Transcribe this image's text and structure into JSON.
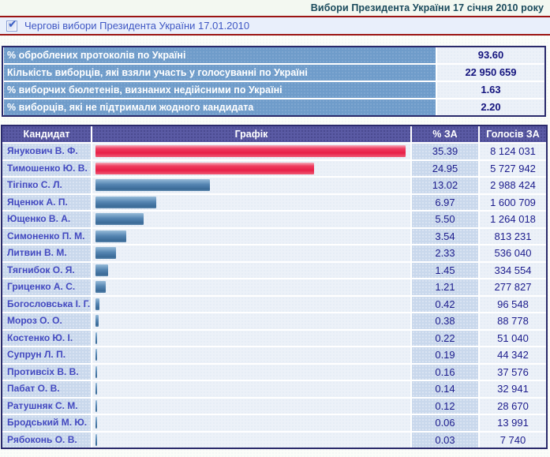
{
  "header": {
    "title": "Вибори Президента України 17 січня 2010 року",
    "election_label": "Чергові вибори Президента України 17.01.2010",
    "checkbox_checked": true
  },
  "summary": {
    "rows": [
      {
        "label": "% оброблених протоколів по Україні",
        "value": "93.60"
      },
      {
        "label": "Кількість виборців, які взяли участь у голосуванні по Україні",
        "value": "22 950 659"
      },
      {
        "label": "% виборчих бюлетенів, визнаних недійсними по Україні",
        "value": "1.63"
      },
      {
        "label": "% виборців, які не підтримали жодного кандидата",
        "value": "2.20"
      }
    ]
  },
  "results_table": {
    "columns": [
      "Кандидат",
      "Графік",
      "% ЗА",
      "Голосів ЗА"
    ],
    "max_percent": 35.39,
    "rows": [
      {
        "candidate": "Янукович В. Ф.",
        "percent": "35.39",
        "votes": "8 124 031",
        "bar_color": "red"
      },
      {
        "candidate": "Тимошенко Ю. В.",
        "percent": "24.95",
        "votes": "5 727 942",
        "bar_color": "red"
      },
      {
        "candidate": "Тігіпко С. Л.",
        "percent": "13.02",
        "votes": "2 988 424",
        "bar_color": "blue"
      },
      {
        "candidate": "Яценюк А. П.",
        "percent": "6.97",
        "votes": "1 600 709",
        "bar_color": "blue"
      },
      {
        "candidate": "Ющенко В. А.",
        "percent": "5.50",
        "votes": "1 264 018",
        "bar_color": "blue"
      },
      {
        "candidate": "Симоненко П. М.",
        "percent": "3.54",
        "votes": "813 231",
        "bar_color": "blue"
      },
      {
        "candidate": "Литвин В. М.",
        "percent": "2.33",
        "votes": "536 040",
        "bar_color": "blue"
      },
      {
        "candidate": "Тягнибок О. Я.",
        "percent": "1.45",
        "votes": "334 554",
        "bar_color": "blue"
      },
      {
        "candidate": "Гриценко А. С.",
        "percent": "1.21",
        "votes": "277 827",
        "bar_color": "blue"
      },
      {
        "candidate": "Богословська І. Г.",
        "percent": "0.42",
        "votes": "96 548",
        "bar_color": "blue"
      },
      {
        "candidate": "Мороз О. О.",
        "percent": "0.38",
        "votes": "88 778",
        "bar_color": "blue"
      },
      {
        "candidate": "Костенко Ю. І.",
        "percent": "0.22",
        "votes": "51 040",
        "bar_color": "blue"
      },
      {
        "candidate": "Супрун Л. П.",
        "percent": "0.19",
        "votes": "44 342",
        "bar_color": "blue"
      },
      {
        "candidate": "Противсіх В. В.",
        "percent": "0.16",
        "votes": "37 576",
        "bar_color": "blue"
      },
      {
        "candidate": "Пабат О. В.",
        "percent": "0.14",
        "votes": "32 941",
        "bar_color": "blue"
      },
      {
        "candidate": "Ратушняк С. М.",
        "percent": "0.12",
        "votes": "28 670",
        "bar_color": "blue"
      },
      {
        "candidate": "Бродський М. Ю.",
        "percent": "0.06",
        "votes": "13 991",
        "bar_color": "blue"
      },
      {
        "candidate": "Рябоконь О. В.",
        "percent": "0.03",
        "votes": "7 740",
        "bar_color": "blue"
      }
    ]
  },
  "chart_data": {
    "type": "bar",
    "title": "Вибори Президента України 17 січня 2010 року",
    "categories": [
      "Янукович В. Ф.",
      "Тимошенко Ю. В.",
      "Тігіпко С. Л.",
      "Яценюк А. П.",
      "Ющенко В. А.",
      "Симоненко П. М.",
      "Литвин В. М.",
      "Тягнибок О. Я.",
      "Гриценко А. С.",
      "Богословська І. Г.",
      "Мороз О. О.",
      "Костенко Ю. І.",
      "Супрун Л. П.",
      "Противсіх В. В.",
      "Пабат О. В.",
      "Ратушняк С. М.",
      "Бродський М. Ю.",
      "Рябоконь О. В."
    ],
    "series": [
      {
        "name": "% ЗА",
        "values": [
          35.39,
          24.95,
          13.02,
          6.97,
          5.5,
          3.54,
          2.33,
          1.45,
          1.21,
          0.42,
          0.38,
          0.22,
          0.19,
          0.16,
          0.14,
          0.12,
          0.06,
          0.03
        ]
      },
      {
        "name": "Голосів ЗА",
        "values": [
          8124031,
          5727942,
          2988424,
          1600709,
          1264018,
          813231,
          536040,
          334554,
          277827,
          96548,
          88778,
          51040,
          44342,
          37576,
          32941,
          28670,
          13991,
          7740
        ]
      }
    ],
    "xlim": [
      0,
      35.39
    ],
    "legend_position": "none",
    "grid": false
  },
  "colors": {
    "accent_red_line": "#9b1413",
    "table_border": "#2a2a6b",
    "header_bg": "#5a5aa4",
    "summary_label_bg": "#6f9cca",
    "bar_red": "#ee2a52",
    "bar_blue": "#4d7dab",
    "candidate_text": "#4349c0",
    "value_text": "#1b1b8c",
    "title_text": "#1a4a5c"
  }
}
